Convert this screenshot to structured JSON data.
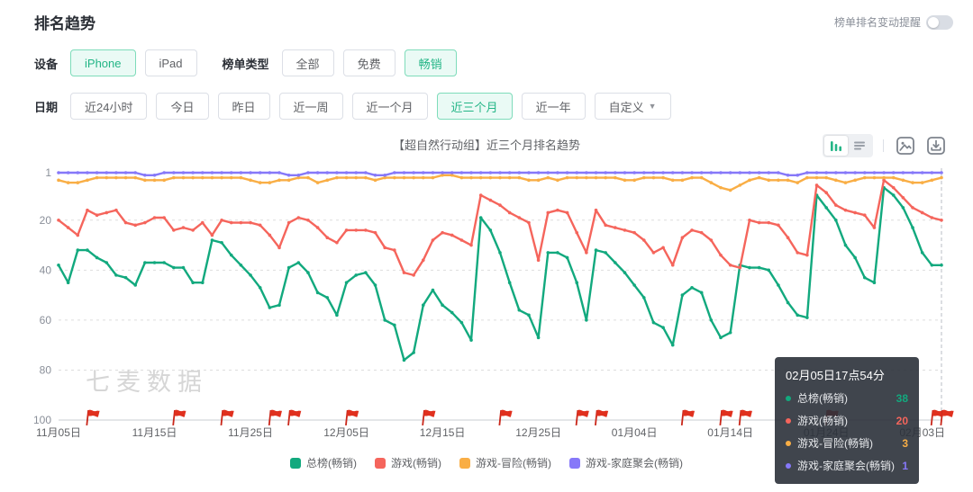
{
  "page": {
    "title": "排名趋势"
  },
  "alert_toggle": {
    "label": "榜单排名变动提醒",
    "state": "off"
  },
  "filters": {
    "device": {
      "label": "设备",
      "options": [
        "iPhone",
        "iPad"
      ],
      "selected": "iPhone"
    },
    "chart_type": {
      "label": "榜单类型",
      "options": [
        "全部",
        "免费",
        "畅销"
      ],
      "selected": "畅销"
    },
    "date": {
      "label": "日期",
      "options": [
        "近24小时",
        "今日",
        "昨日",
        "近一周",
        "近一个月",
        "近三个月",
        "近一年",
        "自定义"
      ],
      "selected": "近三个月"
    }
  },
  "chart_header": {
    "title": "【超自然行动组】近三个月排名趋势"
  },
  "toolbar": {
    "icons": [
      "bar-chart-icon",
      "list-icon",
      "image-icon",
      "download-icon"
    ]
  },
  "watermark": "七麦数据",
  "tooltip": {
    "title": "02月05日17点54分",
    "rows": [
      {
        "label": "总榜(畅销)",
        "value": 38,
        "color": "#12a97e"
      },
      {
        "label": "游戏(畅销)",
        "value": 20,
        "color": "#f5655c"
      },
      {
        "label": "游戏-冒险(畅销)",
        "value": 3,
        "color": "#f9ae45"
      },
      {
        "label": "游戏-家庭聚会(畅销)",
        "value": 1,
        "color": "#8678f9"
      }
    ]
  },
  "chart_data": {
    "type": "line",
    "title": "【超自然行动组】近三个月排名趋势",
    "inverted_y": true,
    "ylim": [
      1,
      100
    ],
    "y_ticks": [
      1,
      20,
      40,
      60,
      80,
      100
    ],
    "x_tick_labels": [
      "11月05日",
      "11月15日",
      "11月25日",
      "12月05日",
      "12月15日",
      "12月25日",
      "01月04日",
      "01月14日",
      "01月24日",
      "02月03日"
    ],
    "x_tick_day_indices": [
      0,
      10,
      20,
      30,
      40,
      50,
      60,
      70,
      80,
      90
    ],
    "days": 93,
    "legend_position": "bottom",
    "grid": "dashed-horizontal",
    "flag_day_indices": [
      3,
      12,
      17,
      22,
      24,
      30,
      38,
      46,
      54,
      56,
      65,
      69,
      71,
      80,
      91,
      92
    ],
    "crosshair_day_index": 92,
    "series": [
      {
        "name": "总榜(畅销)",
        "color": "#12a97e",
        "values": [
          38,
          45,
          32,
          32,
          35,
          37,
          42,
          43,
          46,
          37,
          37,
          37,
          39,
          39,
          45,
          45,
          28,
          29,
          34,
          38,
          42,
          47,
          55,
          54,
          39,
          37,
          41,
          49,
          51,
          58,
          45,
          42,
          41,
          46,
          60,
          62,
          76,
          73,
          54,
          48,
          54,
          57,
          61,
          68,
          19,
          24,
          33,
          45,
          56,
          58,
          67,
          33,
          33,
          35,
          45,
          60,
          32,
          33,
          37,
          41,
          46,
          51,
          61,
          63,
          70,
          50,
          47,
          49,
          60,
          67,
          65,
          38,
          39,
          39,
          40,
          46,
          53,
          58,
          59,
          10,
          15,
          20,
          30,
          35,
          43,
          45,
          7,
          10,
          15,
          23,
          33,
          38,
          38
        ]
      },
      {
        "name": "游戏(畅销)",
        "color": "#f5655c",
        "values": [
          20,
          23,
          26,
          16,
          18,
          17,
          16,
          21,
          22,
          21,
          19,
          19,
          24,
          23,
          24,
          21,
          26,
          20,
          21,
          21,
          21,
          22,
          26,
          31,
          21,
          19,
          20,
          23,
          27,
          29,
          24,
          24,
          24,
          25,
          31,
          32,
          41,
          42,
          36,
          28,
          25,
          26,
          28,
          30,
          10,
          12,
          14,
          17,
          19,
          21,
          36,
          17,
          16,
          17,
          25,
          33,
          16,
          22,
          23,
          24,
          25,
          28,
          33,
          31,
          38,
          27,
          24,
          25,
          28,
          34,
          38,
          39,
          20,
          21,
          21,
          22,
          27,
          33,
          34,
          6,
          9,
          14,
          16,
          17,
          18,
          23,
          4,
          7,
          11,
          15,
          17,
          19,
          20
        ]
      },
      {
        "name": "游戏-冒险(畅销)",
        "color": "#f9ae45",
        "values": [
          4,
          5,
          5,
          4,
          3,
          3,
          3,
          3,
          3,
          4,
          4,
          4,
          3,
          3,
          3,
          3,
          3,
          3,
          3,
          3,
          4,
          5,
          5,
          4,
          4,
          3,
          3,
          5,
          4,
          3,
          3,
          3,
          3,
          4,
          3,
          3,
          3,
          3,
          3,
          3,
          2,
          2,
          3,
          3,
          3,
          3,
          3,
          3,
          3,
          4,
          4,
          3,
          4,
          3,
          3,
          3,
          3,
          3,
          3,
          4,
          4,
          3,
          3,
          3,
          4,
          4,
          3,
          3,
          5,
          7,
          8,
          6,
          4,
          3,
          4,
          4,
          4,
          5,
          3,
          3,
          3,
          4,
          5,
          4,
          3,
          3,
          3,
          3,
          4,
          5,
          5,
          4,
          3
        ]
      },
      {
        "name": "游戏-家庭聚会(畅销)",
        "color": "#8678f9",
        "values": [
          1,
          1,
          1,
          1,
          1,
          1,
          1,
          1,
          1,
          2,
          2,
          1,
          1,
          1,
          1,
          1,
          1,
          1,
          1,
          1,
          1,
          1,
          1,
          1,
          2,
          2,
          1,
          1,
          1,
          1,
          1,
          1,
          1,
          2,
          2,
          1,
          1,
          1,
          1,
          1,
          1,
          1,
          1,
          1,
          1,
          1,
          1,
          1,
          1,
          1,
          1,
          1,
          1,
          1,
          1,
          1,
          1,
          1,
          1,
          1,
          1,
          1,
          1,
          1,
          1,
          1,
          1,
          1,
          1,
          1,
          1,
          1,
          1,
          1,
          1,
          1,
          2,
          2,
          1,
          1,
          1,
          1,
          1,
          1,
          1,
          1,
          1,
          1,
          1,
          1,
          1,
          1,
          1
        ]
      }
    ]
  }
}
